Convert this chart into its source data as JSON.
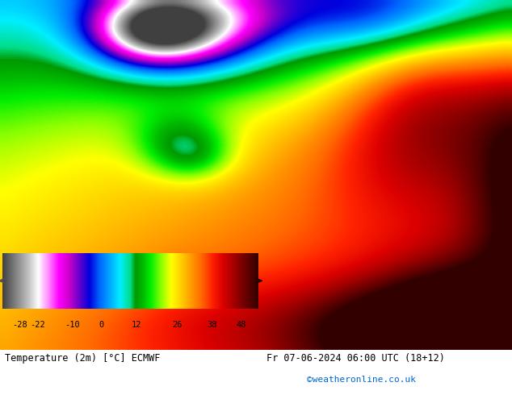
{
  "title_left": "Temperature (2m) [°C] ECMWF",
  "title_right": "Fr 07-06-2024 06:00 UTC (18+12)",
  "watermark": "©weatheronline.co.uk",
  "colorbar_ticks": [
    -28,
    -22,
    -10,
    0,
    12,
    26,
    38,
    48
  ],
  "fig_width": 6.34,
  "fig_height": 4.9,
  "bg_color": "#ffffff",
  "temp_min": -34,
  "temp_max": 54,
  "colors_with_positions": [
    [
      0.0,
      "#404040"
    ],
    [
      0.05,
      "#808080"
    ],
    [
      0.1,
      "#c0c0c0"
    ],
    [
      0.14,
      "#ffffff"
    ],
    [
      0.18,
      "#ff88ff"
    ],
    [
      0.22,
      "#ff00ff"
    ],
    [
      0.26,
      "#cc00cc"
    ],
    [
      0.3,
      "#6600cc"
    ],
    [
      0.34,
      "#0000dd"
    ],
    [
      0.38,
      "#0066ff"
    ],
    [
      0.42,
      "#00aaff"
    ],
    [
      0.46,
      "#00eeff"
    ],
    [
      0.5,
      "#00dd88"
    ],
    [
      0.52,
      "#009900"
    ],
    [
      0.55,
      "#00bb00"
    ],
    [
      0.58,
      "#00ee00"
    ],
    [
      0.62,
      "#88ff00"
    ],
    [
      0.66,
      "#ffff00"
    ],
    [
      0.7,
      "#ffcc00"
    ],
    [
      0.74,
      "#ff9900"
    ],
    [
      0.78,
      "#ff6600"
    ],
    [
      0.82,
      "#ff2200"
    ],
    [
      0.86,
      "#dd0000"
    ],
    [
      0.9,
      "#aa0000"
    ],
    [
      0.94,
      "#770000"
    ],
    [
      1.0,
      "#330000"
    ]
  ]
}
